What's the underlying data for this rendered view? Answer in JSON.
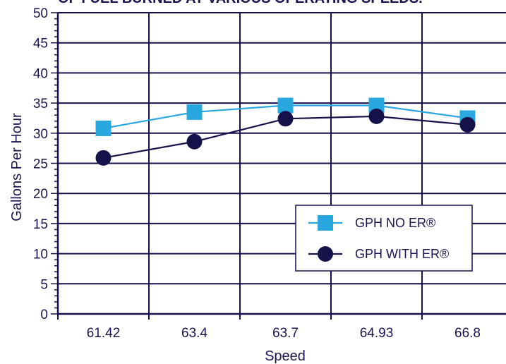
{
  "chart_data": {
    "type": "line",
    "title": "OF FUEL BURNED AT VARIOUS OPERATING SPEEDS.",
    "xlabel": "Speed",
    "ylabel": "Gallons Per Hour",
    "categories": [
      "61.42",
      "63.4",
      "63.7",
      "64.93",
      "66.8"
    ],
    "ylim": [
      0,
      50
    ],
    "yticks": [
      0,
      5,
      10,
      15,
      20,
      25,
      30,
      35,
      40,
      45,
      50
    ],
    "grid": true,
    "legend_position": "lower-right",
    "series": [
      {
        "name": "GPH NO ER®",
        "marker": "square",
        "color": "#29a8e0",
        "values": [
          30.8,
          33.5,
          34.6,
          34.6,
          32.5
        ]
      },
      {
        "name": "GPH WITH ER®",
        "marker": "circle",
        "color": "#16114a",
        "values": [
          25.9,
          28.6,
          32.4,
          32.8,
          31.4
        ]
      }
    ]
  }
}
